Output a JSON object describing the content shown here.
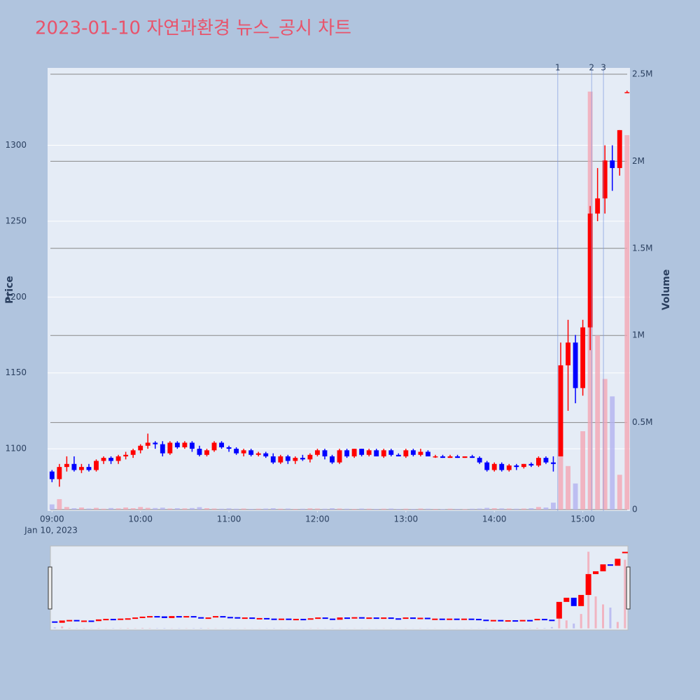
{
  "chart_data": {
    "type": "candlestick",
    "title": "2023-01-10 자연과환경 뉴스_공시 차트",
    "y_label": "Price",
    "y2_label": "Volume",
    "x_date_label": "Jan 10, 2023",
    "x": [
      "09:00",
      "09:05",
      "09:10",
      "09:15",
      "09:20",
      "09:25",
      "09:30",
      "09:35",
      "09:40",
      "09:45",
      "09:50",
      "09:55",
      "10:00",
      "10:05",
      "10:10",
      "10:15",
      "10:20",
      "10:25",
      "10:30",
      "10:35",
      "10:40",
      "10:45",
      "10:50",
      "10:55",
      "11:00",
      "11:05",
      "11:10",
      "11:15",
      "11:20",
      "11:25",
      "11:30",
      "11:35",
      "11:40",
      "11:45",
      "11:50",
      "11:55",
      "12:00",
      "12:05",
      "12:10",
      "12:15",
      "12:20",
      "12:25",
      "12:30",
      "12:35",
      "12:40",
      "12:45",
      "12:50",
      "12:55",
      "13:00",
      "13:05",
      "13:10",
      "13:15",
      "13:20",
      "13:25",
      "13:30",
      "13:35",
      "13:40",
      "13:45",
      "13:50",
      "13:55",
      "14:00",
      "14:05",
      "14:10",
      "14:15",
      "14:20",
      "14:25",
      "14:30",
      "14:35",
      "14:40",
      "14:45",
      "14:50",
      "14:55",
      "15:00",
      "15:05",
      "15:10",
      "15:15",
      "15:20",
      "15:25",
      "15:30"
    ],
    "open": [
      1085,
      1080,
      1088,
      1090,
      1086,
      1088,
      1086,
      1092,
      1094,
      1092,
      1095,
      1096,
      1099,
      1102,
      1104,
      1103,
      1097,
      1104,
      1101,
      1104,
      1100,
      1096,
      1099,
      1104,
      1101,
      1100,
      1097,
      1099,
      1096,
      1097,
      1095,
      1091,
      1095,
      1092,
      1094,
      1093,
      1096,
      1099,
      1095,
      1091,
      1099,
      1095,
      1100,
      1096,
      1099,
      1095,
      1099,
      1096,
      1095,
      1099,
      1096,
      1098,
      1095,
      1095,
      1094,
      1095,
      1094,
      1095,
      1094,
      1091,
      1086,
      1090,
      1086,
      1089,
      1088,
      1090,
      1089,
      1094,
      1091,
      1095,
      1155,
      1170,
      1140,
      1180,
      1255,
      1265,
      1290,
      1285,
      1335
    ],
    "high": [
      1086,
      1090,
      1095,
      1095,
      1090,
      1090,
      1093,
      1095,
      1095,
      1096,
      1098,
      1100,
      1103,
      1110,
      1105,
      1105,
      1105,
      1105,
      1105,
      1105,
      1102,
      1100,
      1105,
      1105,
      1102,
      1101,
      1100,
      1100,
      1098,
      1098,
      1097,
      1096,
      1096,
      1095,
      1096,
      1097,
      1100,
      1100,
      1096,
      1100,
      1100,
      1100,
      1100,
      1100,
      1100,
      1100,
      1100,
      1097,
      1100,
      1100,
      1100,
      1099,
      1096,
      1096,
      1096,
      1096,
      1095,
      1096,
      1095,
      1092,
      1091,
      1091,
      1090,
      1090,
      1090,
      1091,
      1095,
      1095,
      1095,
      1170,
      1185,
      1175,
      1185,
      1260,
      1285,
      1300,
      1300,
      1310,
      1336
    ],
    "low": [
      1078,
      1075,
      1085,
      1085,
      1084,
      1085,
      1085,
      1090,
      1090,
      1090,
      1093,
      1094,
      1097,
      1100,
      1100,
      1095,
      1096,
      1100,
      1100,
      1098,
      1095,
      1095,
      1098,
      1100,
      1098,
      1096,
      1095,
      1095,
      1095,
      1094,
      1090,
      1090,
      1090,
      1090,
      1092,
      1091,
      1095,
      1093,
      1090,
      1090,
      1094,
      1094,
      1095,
      1095,
      1095,
      1094,
      1095,
      1095,
      1094,
      1095,
      1095,
      1095,
      1094,
      1094,
      1094,
      1094,
      1094,
      1094,
      1090,
      1085,
      1085,
      1085,
      1085,
      1086,
      1087,
      1088,
      1088,
      1090,
      1085,
      1095,
      1125,
      1130,
      1135,
      1165,
      1250,
      1255,
      1270,
      1280,
      1335
    ],
    "close": [
      1080,
      1088,
      1090,
      1086,
      1088,
      1086,
      1092,
      1094,
      1092,
      1095,
      1096,
      1099,
      1102,
      1104,
      1103,
      1097,
      1104,
      1101,
      1104,
      1100,
      1096,
      1099,
      1104,
      1101,
      1100,
      1097,
      1099,
      1096,
      1097,
      1095,
      1091,
      1095,
      1092,
      1094,
      1093,
      1096,
      1099,
      1095,
      1091,
      1099,
      1095,
      1100,
      1096,
      1099,
      1095,
      1099,
      1096,
      1095,
      1099,
      1096,
      1098,
      1095,
      1095,
      1094,
      1095,
      1094,
      1095,
      1094,
      1091,
      1086,
      1090,
      1086,
      1089,
      1088,
      1090,
      1089,
      1094,
      1091,
      1090,
      1155,
      1170,
      1140,
      1180,
      1255,
      1265,
      1290,
      1285,
      1310,
      1335
    ],
    "volume": [
      30000,
      60000,
      15000,
      8000,
      12000,
      6000,
      10000,
      5000,
      9000,
      7000,
      12000,
      8000,
      15000,
      10000,
      9000,
      11000,
      6000,
      8000,
      7000,
      9000,
      14000,
      8000,
      6000,
      5000,
      7000,
      5000,
      6000,
      4000,
      5000,
      6000,
      8000,
      5000,
      6000,
      4000,
      5000,
      7000,
      6000,
      5000,
      8000,
      6000,
      5000,
      4000,
      6000,
      5000,
      4000,
      5000,
      6000,
      4000,
      5000,
      4000,
      6000,
      5000,
      4000,
      3000,
      5000,
      4000,
      3000,
      5000,
      6000,
      10000,
      8000,
      7000,
      6000,
      5000,
      6000,
      8000,
      15000,
      12000,
      40000,
      600000,
      250000,
      150000,
      450000,
      2400000,
      1000000,
      750000,
      650000,
      200000,
      2150000
    ],
    "up_color": "#ff0000",
    "down_color": "#0000ff",
    "up_volume_color": "#f4a6b4",
    "down_volume_color": "#b3b3f0",
    "xlim": [
      "08:57",
      "15:32"
    ],
    "xticks": [
      "09:00",
      "10:00",
      "11:00",
      "12:00",
      "13:00",
      "14:00",
      "15:00"
    ],
    "ylim": [
      1059,
      1351
    ],
    "yticks": [
      1100,
      1150,
      1200,
      1250,
      1300
    ],
    "y2lim": [
      -8000,
      2536000
    ],
    "y2ticks": [
      {
        "value": 0,
        "label": "0"
      },
      {
        "value": 500000,
        "label": "0.5M"
      },
      {
        "value": 1000000,
        "label": "1M"
      },
      {
        "value": 1500000,
        "label": "1.5M"
      },
      {
        "value": 2000000,
        "label": "2M"
      },
      {
        "value": 2500000,
        "label": "2.5M"
      }
    ],
    "annotations": [
      {
        "x": "14:43",
        "text": "1"
      },
      {
        "x": "15:06",
        "text": "2"
      },
      {
        "x": "15:14",
        "text": "3"
      }
    ],
    "grid": true,
    "rangeslider": true
  }
}
